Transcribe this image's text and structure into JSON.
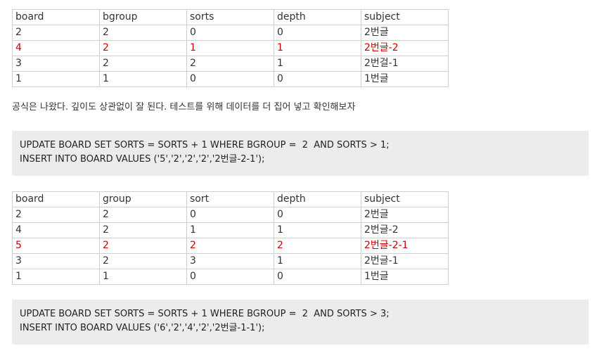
{
  "table1": {
    "headers": [
      "board",
      "bgroup",
      "sorts",
      "depth",
      "subject"
    ],
    "rows": [
      [
        "2",
        "2",
        "0",
        "0",
        "2번글"
      ],
      [
        "4",
        "2",
        "1",
        "1",
        "2번글-2"
      ],
      [
        "3",
        "2",
        "2",
        "1",
        "2번걸-1"
      ],
      [
        "1",
        "1",
        "0",
        "0",
        "1번글"
      ]
    ],
    "highlight_row": 1
  },
  "paragraph": "공식은 나왔다.  깊이도 상관없이 잘 된다. 테스트를 위해 데이터를 더 집어 넣고 확인해보자",
  "code1": {
    "lines": [
      "UPDATE BOARD SET SORTS = SORTS + 1 WHERE BGROUP =  2  AND SORTS > 1;",
      "INSERT INTO BOARD VALUES ('5','2','2','2','2번글-2-1');"
    ]
  },
  "table2": {
    "headers": [
      "board",
      "group",
      "sort",
      "depth",
      "subject"
    ],
    "rows": [
      [
        "2",
        "2",
        "0",
        "0",
        "2번글"
      ],
      [
        "4",
        "2",
        "1",
        "1",
        "2번글-2"
      ],
      [
        "5",
        "2",
        "2",
        "2",
        "2번글-2-1"
      ],
      [
        "3",
        "2",
        "3",
        "1",
        "2번글-1"
      ],
      [
        "1",
        "1",
        "0",
        "0",
        "1번글"
      ]
    ],
    "highlight_row": 2
  },
  "code2": {
    "lines": [
      "UPDATE BOARD SET SORTS = SORTS + 1 WHERE BGROUP =  2  AND SORTS > 3;",
      "INSERT INTO BOARD VALUES ('6','2','4','2','2번글-1-1');"
    ]
  },
  "colors": {
    "highlight_text": "#cc0000",
    "code_background": "#ececec",
    "table_border": "#d0d0d0"
  }
}
